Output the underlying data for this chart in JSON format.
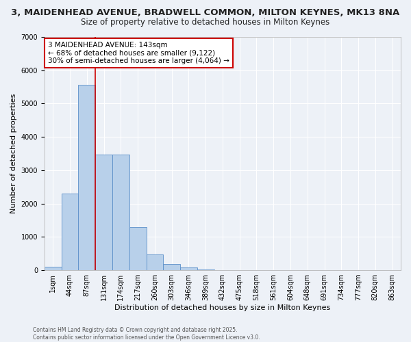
{
  "title": "3, MAIDENHEAD AVENUE, BRADWELL COMMON, MILTON KEYNES, MK13 8NA",
  "subtitle": "Size of property relative to detached houses in Milton Keynes",
  "xlabel": "Distribution of detached houses by size in Milton Keynes",
  "ylabel": "Number of detached properties",
  "categories": [
    "1sqm",
    "44sqm",
    "87sqm",
    "131sqm",
    "174sqm",
    "217sqm",
    "260sqm",
    "303sqm",
    "346sqm",
    "389sqm",
    "432sqm",
    "475sqm",
    "518sqm",
    "561sqm",
    "604sqm",
    "648sqm",
    "691sqm",
    "734sqm",
    "777sqm",
    "820sqm",
    "863sqm"
  ],
  "values": [
    100,
    2300,
    5560,
    3470,
    3460,
    1300,
    480,
    180,
    90,
    30,
    0,
    0,
    0,
    0,
    0,
    0,
    0,
    0,
    0,
    0,
    0
  ],
  "bar_color": "#b8d0ea",
  "bar_edge_color": "#5b8fc9",
  "vline_x": 2.5,
  "vline_color": "#cc0000",
  "annotation_text": "3 MAIDENHEAD AVENUE: 143sqm\n← 68% of detached houses are smaller (9,122)\n30% of semi-detached houses are larger (4,064) →",
  "annotation_box_color": "#ffffff",
  "annotation_box_edge": "#cc0000",
  "ylim": [
    0,
    7000
  ],
  "yticks": [
    0,
    1000,
    2000,
    3000,
    4000,
    5000,
    6000,
    7000
  ],
  "background_color": "#edf1f7",
  "grid_color": "#ffffff",
  "title_fontsize": 9.5,
  "subtitle_fontsize": 8.5,
  "axis_label_fontsize": 8,
  "tick_fontsize": 7,
  "footer_text": "Contains HM Land Registry data © Crown copyright and database right 2025.\nContains public sector information licensed under the Open Government Licence v3.0."
}
